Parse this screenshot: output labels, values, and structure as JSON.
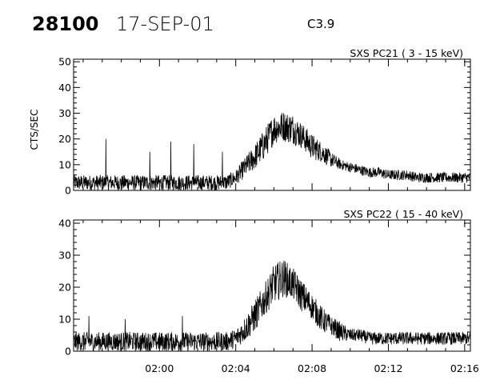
{
  "header": {
    "event_id": "28100",
    "date": "17-SEP-01",
    "flare_class": "C3.9"
  },
  "chart_data": [
    {
      "type": "line",
      "title": "SXS PC21  (  3 - 15 keV)",
      "ylabel": "CTS/SEC",
      "xlabel": "",
      "ylim": [
        0,
        51
      ],
      "yticks": [
        0,
        10,
        20,
        30,
        40,
        50
      ],
      "xlim_minutes": [
        -4.5,
        16.3
      ],
      "xticks": [
        "02:00",
        "02:04",
        "02:08",
        "02:12",
        "02:16"
      ],
      "xtick_labels_shown": false,
      "grid": false,
      "series": [
        {
          "x_minutes": [
            -4.5,
            -3.5,
            -2.5,
            -1.5,
            -0.5,
            0.5,
            1.5,
            2.5,
            3.5,
            4.0,
            4.5,
            5.0,
            5.5,
            6.0,
            6.5,
            7.0,
            7.5,
            8.0,
            8.5,
            9.0,
            9.5,
            10.0,
            10.5,
            11.0,
            11.5,
            12.0,
            12.5,
            13.0,
            13.5,
            14.0,
            14.5,
            15.0,
            15.5,
            16.3
          ],
          "y": [
            3,
            3,
            3,
            3,
            3,
            3,
            3,
            3,
            3,
            5,
            9,
            13,
            18,
            24,
            25,
            24,
            21,
            17,
            15,
            12,
            10,
            9,
            8,
            7,
            7,
            6,
            6,
            6,
            5,
            5,
            5,
            5,
            5,
            5
          ],
          "noise": [
            3,
            3,
            3,
            3,
            3,
            3,
            3,
            3,
            3,
            3,
            4,
            5,
            6,
            6,
            6,
            6,
            5,
            5,
            4,
            3,
            2,
            2,
            2,
            2,
            2,
            2,
            2,
            2,
            2,
            2,
            2,
            2,
            2,
            2
          ],
          "spikes": [
            [
              -2.8,
              20
            ],
            [
              0.6,
              19
            ],
            [
              1.8,
              18
            ],
            [
              -0.5,
              15
            ],
            [
              3.3,
              15
            ]
          ]
        }
      ]
    },
    {
      "type": "line",
      "title": "SXS PC22  ( 15 - 40 keV)",
      "ylabel": "",
      "xlabel": "",
      "ylim": [
        0,
        41
      ],
      "yticks": [
        0,
        10,
        20,
        30,
        40
      ],
      "xlim_minutes": [
        -4.5,
        16.3
      ],
      "xticks": [
        "02:00",
        "02:04",
        "02:08",
        "02:12",
        "02:16"
      ],
      "grid": false,
      "series": [
        {
          "x_minutes": [
            -4.5,
            -3.5,
            -2.5,
            -1.5,
            -0.5,
            0.5,
            1.5,
            2.5,
            3.5,
            4.0,
            4.5,
            5.0,
            5.5,
            6.0,
            6.5,
            7.0,
            7.5,
            8.0,
            8.5,
            9.0,
            9.5,
            10.0,
            10.5,
            11.0,
            11.5,
            12.0,
            12.5,
            13.0,
            13.5,
            14.0,
            14.5,
            15.0,
            15.5,
            16.3
          ],
          "y": [
            3,
            3,
            3,
            3,
            3,
            3,
            3,
            3,
            3,
            4,
            7,
            11,
            16,
            21,
            23,
            21,
            17,
            14,
            10,
            8,
            6,
            5,
            5,
            4,
            4,
            4,
            4,
            4,
            4,
            4,
            4,
            4,
            4,
            4
          ],
          "noise": [
            3,
            3,
            3,
            3,
            3,
            3,
            3,
            3,
            3,
            3,
            4,
            5,
            5,
            6,
            6,
            5,
            5,
            4,
            4,
            3,
            3,
            2,
            2,
            2,
            2,
            2,
            2,
            2,
            2,
            2,
            2,
            2,
            2,
            2
          ],
          "spikes": [
            [
              -3.7,
              11
            ],
            [
              1.2,
              11
            ],
            [
              -1.8,
              10
            ]
          ]
        }
      ]
    }
  ]
}
